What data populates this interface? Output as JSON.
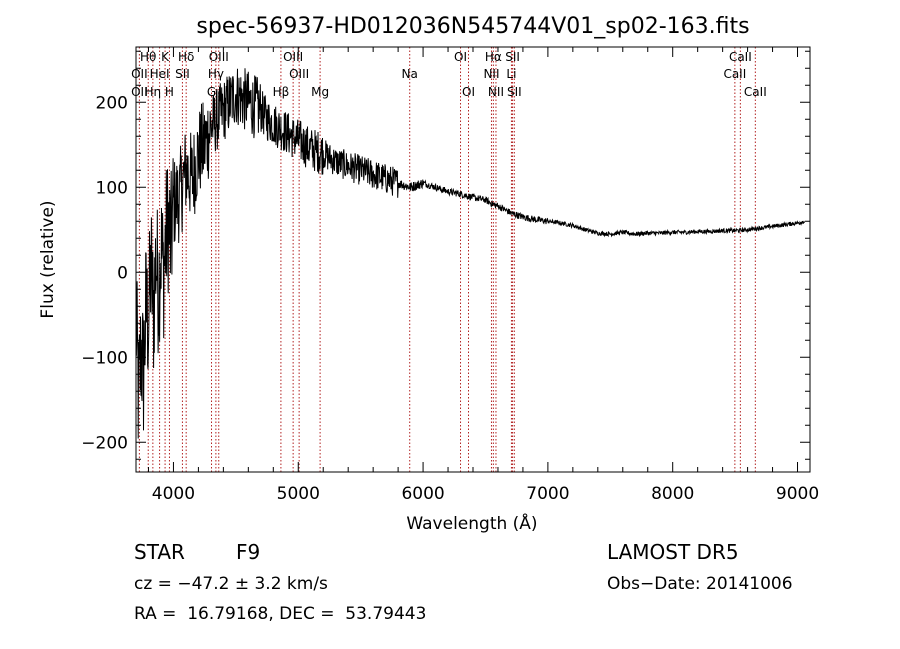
{
  "chart_data": {
    "type": "line",
    "title": "spec-56937-HD012036N545744V01_sp02-163.fits",
    "xlabel": "Wavelength (Å)",
    "ylabel": "Flux (relative)",
    "xlim": [
      3700,
      9100
    ],
    "ylim": [
      -235,
      265
    ],
    "x_ticks": [
      4000,
      5000,
      6000,
      7000,
      8000,
      9000
    ],
    "y_ticks": [
      -200,
      -100,
      0,
      100,
      200
    ],
    "grid": false,
    "line_color": "#000000",
    "marker_color": "#b22222",
    "series": [
      {
        "x": [
          3700,
          3720,
          3740,
          3760,
          3780,
          3800,
          3820,
          3840,
          3860,
          3880,
          3900,
          3920,
          3940,
          3960,
          3980,
          4000,
          4050,
          4100,
          4150,
          4200,
          4250,
          4300,
          4350,
          4400,
          4450,
          4500,
          4550,
          4600,
          4650,
          4700,
          4750,
          4800,
          4850,
          4900,
          4950,
          5000,
          5100,
          5200,
          5300,
          5400,
          5500,
          5600,
          5700,
          5800,
          5900,
          6000,
          6100,
          6200,
          6300,
          6400,
          6500,
          6560,
          6600,
          6700,
          6800,
          6900,
          7000,
          7100,
          7200,
          7300,
          7400,
          7500,
          7600,
          7700,
          7800,
          7900,
          8000,
          8100,
          8200,
          8300,
          8400,
          8500,
          8600,
          8700,
          8800,
          8900,
          9000,
          9060
        ],
        "values": [
          -50,
          -150,
          -90,
          -120,
          -40,
          -60,
          10,
          -50,
          20,
          -20,
          30,
          0,
          40,
          60,
          30,
          80,
          90,
          120,
          110,
          140,
          150,
          170,
          180,
          190,
          200,
          210,
          205,
          200,
          195,
          190,
          180,
          175,
          170,
          165,
          160,
          155,
          145,
          140,
          130,
          125,
          120,
          115,
          110,
          105,
          100,
          105,
          100,
          95,
          92,
          88,
          85,
          80,
          78,
          70,
          65,
          62,
          60,
          58,
          55,
          50,
          46,
          45,
          47,
          45,
          46,
          46,
          47,
          47,
          48,
          48,
          49,
          49,
          50,
          52,
          54,
          56,
          58,
          60
        ]
      }
    ],
    "lines": [
      {
        "label": "Hθ",
        "x": 3798,
        "row": 0
      },
      {
        "label": "OII",
        "x": 3727,
        "row": 1
      },
      {
        "label": "OII",
        "x": 3727,
        "row": 2
      },
      {
        "label": "Hη",
        "x": 3835,
        "row": 2
      },
      {
        "label": "K",
        "x": 3933,
        "row": 0
      },
      {
        "label": "HeI",
        "x": 3889,
        "row": 1
      },
      {
        "label": "H",
        "x": 3968,
        "row": 2
      },
      {
        "label": "Hδ",
        "x": 4102,
        "row": 0
      },
      {
        "label": "SII",
        "x": 4072,
        "row": 1
      },
      {
        "label": "OIII",
        "x": 4363,
        "row": 0
      },
      {
        "label": "Hγ",
        "x": 4340,
        "row": 1
      },
      {
        "label": "G",
        "x": 4305,
        "row": 2
      },
      {
        "label": "OIII",
        "x": 4959,
        "row": 0
      },
      {
        "label": "OIII",
        "x": 5007,
        "row": 1
      },
      {
        "label": "Hβ",
        "x": 4861,
        "row": 2
      },
      {
        "label": "Mg",
        "x": 5175,
        "row": 2
      },
      {
        "label": "Na",
        "x": 5893,
        "row": 1
      },
      {
        "label": "OI",
        "x": 6300,
        "row": 0
      },
      {
        "label": "OI",
        "x": 6364,
        "row": 2
      },
      {
        "label": "Hα",
        "x": 6563,
        "row": 0
      },
      {
        "label": "NII",
        "x": 6548,
        "row": 1
      },
      {
        "label": "NII",
        "x": 6584,
        "row": 2
      },
      {
        "label": "SII",
        "x": 6717,
        "row": 0
      },
      {
        "label": "Li",
        "x": 6708,
        "row": 1
      },
      {
        "label": "SII",
        "x": 6731,
        "row": 2
      },
      {
        "label": "CaII",
        "x": 8542,
        "row": 0
      },
      {
        "label": "CaII",
        "x": 8498,
        "row": 1
      },
      {
        "label": "CaII",
        "x": 8662,
        "row": 2
      }
    ]
  },
  "info": {
    "object_type": "STAR",
    "subclass": "F9",
    "survey": "LAMOST DR5",
    "cz": "cz = −47.2 ± 3.2 km/s",
    "obs_date": "Obs−Date: 20141006",
    "coords": "RA =  16.79168, DEC =  53.79443"
  }
}
